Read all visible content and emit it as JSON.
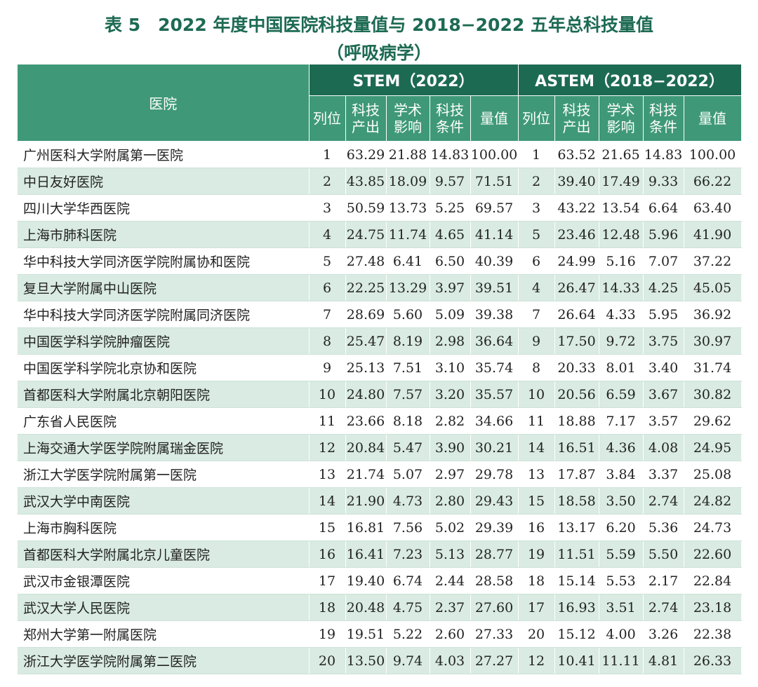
{
  "title": {
    "line1": "表 5　2022 年度中国医院科技量值与 2018−2022 五年总科技量值",
    "line2": "（呼吸病学）"
  },
  "header": {
    "hospital": "医院",
    "group1": "STEM（2022）",
    "group2": "ASTEM（2018−2022）",
    "rank": "列位",
    "output": "科技\n产出",
    "impact": "学术\n影响",
    "condition": "科技\n条件",
    "value": "量值"
  },
  "rows": [
    [
      "广州医科大学附属第一医院",
      "1",
      "63.29",
      "21.88",
      "14.83",
      "100.00",
      "1",
      "63.52",
      "21.65",
      "14.83",
      "100.00"
    ],
    [
      "中日友好医院",
      "2",
      "43.85",
      "18.09",
      "9.57",
      "71.51",
      "2",
      "39.40",
      "17.49",
      "9.33",
      "66.22"
    ],
    [
      "四川大学华西医院",
      "3",
      "50.59",
      "13.73",
      "5.25",
      "69.57",
      "3",
      "43.22",
      "13.54",
      "6.64",
      "63.40"
    ],
    [
      "上海市肺科医院",
      "4",
      "24.75",
      "11.74",
      "4.65",
      "41.14",
      "5",
      "23.46",
      "12.48",
      "5.96",
      "41.90"
    ],
    [
      "华中科技大学同济医学院附属协和医院",
      "5",
      "27.48",
      "6.41",
      "6.50",
      "40.39",
      "6",
      "24.99",
      "5.16",
      "7.07",
      "37.22"
    ],
    [
      "复旦大学附属中山医院",
      "6",
      "22.25",
      "13.29",
      "3.97",
      "39.51",
      "4",
      "26.47",
      "14.33",
      "4.25",
      "45.05"
    ],
    [
      "华中科技大学同济医学院附属同济医院",
      "7",
      "28.69",
      "5.60",
      "5.09",
      "39.38",
      "7",
      "26.64",
      "4.33",
      "5.95",
      "36.92"
    ],
    [
      "中国医学科学院肿瘤医院",
      "8",
      "25.47",
      "8.19",
      "2.98",
      "36.64",
      "9",
      "17.50",
      "9.72",
      "3.75",
      "30.97"
    ],
    [
      "中国医学科学院北京协和医院",
      "9",
      "25.13",
      "7.51",
      "3.10",
      "35.74",
      "8",
      "20.33",
      "8.01",
      "3.40",
      "31.74"
    ],
    [
      "首都医科大学附属北京朝阳医院",
      "10",
      "24.80",
      "7.57",
      "3.20",
      "35.57",
      "10",
      "20.56",
      "6.59",
      "3.67",
      "30.82"
    ],
    [
      "广东省人民医院",
      "11",
      "23.66",
      "8.18",
      "2.82",
      "34.66",
      "11",
      "18.88",
      "7.17",
      "3.57",
      "29.62"
    ],
    [
      "上海交通大学医学院附属瑞金医院",
      "12",
      "20.84",
      "5.47",
      "3.90",
      "30.21",
      "14",
      "16.51",
      "4.36",
      "4.08",
      "24.95"
    ],
    [
      "浙江大学医学院附属第一医院",
      "13",
      "21.74",
      "5.07",
      "2.97",
      "29.78",
      "13",
      "17.87",
      "3.84",
      "3.37",
      "25.08"
    ],
    [
      "武汉大学中南医院",
      "14",
      "21.90",
      "4.73",
      "2.80",
      "29.43",
      "15",
      "18.58",
      "3.50",
      "2.74",
      "24.82"
    ],
    [
      "上海市胸科医院",
      "15",
      "16.81",
      "7.56",
      "5.02",
      "29.39",
      "16",
      "13.17",
      "6.20",
      "5.36",
      "24.73"
    ],
    [
      "首都医科大学附属北京儿童医院",
      "16",
      "16.41",
      "7.23",
      "5.13",
      "28.77",
      "19",
      "11.51",
      "5.59",
      "5.50",
      "22.60"
    ],
    [
      "武汉市金银潭医院",
      "17",
      "19.40",
      "6.74",
      "2.44",
      "28.58",
      "18",
      "15.14",
      "5.53",
      "2.17",
      "22.84"
    ],
    [
      "武汉大学人民医院",
      "18",
      "20.48",
      "4.75",
      "2.37",
      "27.60",
      "17",
      "16.93",
      "3.51",
      "2.74",
      "23.18"
    ],
    [
      "郑州大学第一附属医院",
      "19",
      "19.51",
      "5.22",
      "2.60",
      "27.33",
      "20",
      "15.12",
      "4.00",
      "3.26",
      "22.38"
    ],
    [
      "浙江大学医学院附属第二医院",
      "20",
      "13.50",
      "9.74",
      "4.03",
      "27.27",
      "12",
      "10.41",
      "11.11",
      "4.81",
      "26.33"
    ]
  ]
}
